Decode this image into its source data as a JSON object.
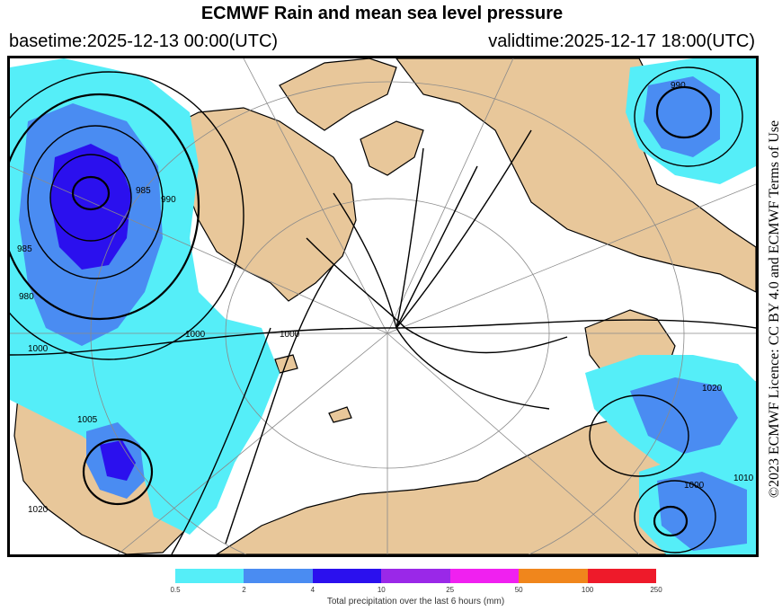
{
  "header": {
    "title": "ECMWF Rain and mean sea level pressure",
    "basetime": "basetime:2025-12-13 00:00(UTC)",
    "validtime": "validtime:2025-12-17 18:00(UTC)"
  },
  "licence": "©2023 ECMWF Licence: CC BY 4.0 and ECMWF Terms of Use",
  "isobar_labels": [
    "990",
    "985",
    "990",
    "985",
    "1000",
    "1000",
    "1005",
    "1020",
    "980",
    "1000",
    "1010",
    "1020",
    "1000"
  ],
  "legend": {
    "title": "Total precipitation over the last 6 hours (mm)",
    "ticks": [
      "0.5",
      "2",
      "4",
      "10",
      "25",
      "50",
      "100",
      "250"
    ],
    "colors": [
      "#55eef8",
      "#4a8cf2",
      "#2b10ee",
      "#9a28e8",
      "#f020f0",
      "#f0861c",
      "#ee1a2a"
    ]
  },
  "colors": {
    "land": "#e8c79a",
    "sea": "#ffffff",
    "rain_light": "#55eef8",
    "rain_moderate": "#4a8cf2",
    "rain_heavy": "#2b10ee"
  }
}
